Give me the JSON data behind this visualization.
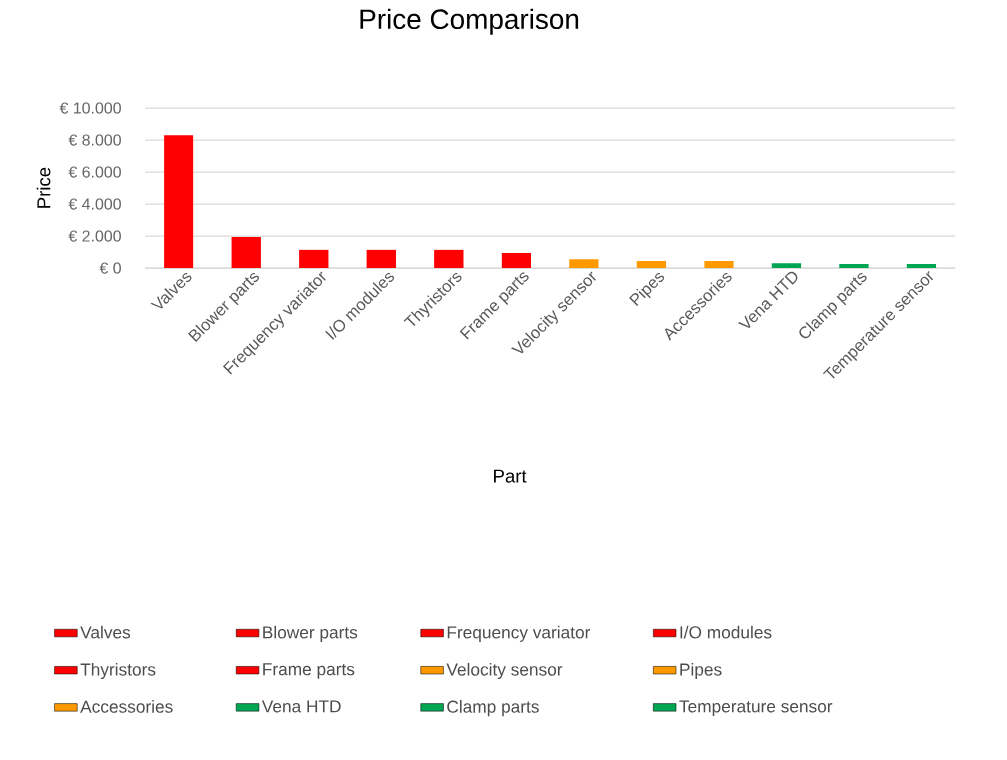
{
  "chart_data": {
    "type": "bar",
    "title": "Price Comparison",
    "xlabel": "Part",
    "ylabel": "Price",
    "categories": [
      "Valves",
      "Blower parts",
      "Frequency variator",
      "I/O modules",
      "Thyristors",
      "Frame parts",
      "Velocity sensor",
      "Pipes",
      "Accessories",
      "Vena HTD",
      "Clamp parts",
      "Temperature sensor"
    ],
    "series": [
      {
        "name": "Valves",
        "color": "#ff0000",
        "values": [
          8300,
          null,
          null,
          null,
          null,
          null,
          null,
          null,
          null,
          null,
          null,
          null
        ]
      },
      {
        "name": "Blower parts",
        "color": "#ff0000",
        "values": [
          null,
          1950,
          null,
          null,
          null,
          null,
          null,
          null,
          null,
          null,
          null,
          null
        ]
      },
      {
        "name": "Frequency variator",
        "color": "#ff0000",
        "values": [
          null,
          null,
          1150,
          null,
          null,
          null,
          null,
          null,
          null,
          null,
          null,
          null
        ]
      },
      {
        "name": "I/O modules",
        "color": "#ff0000",
        "values": [
          null,
          null,
          null,
          1150,
          null,
          null,
          null,
          null,
          null,
          null,
          null,
          null
        ]
      },
      {
        "name": "Thyristors",
        "color": "#ff0000",
        "values": [
          null,
          null,
          null,
          null,
          1150,
          null,
          null,
          null,
          null,
          null,
          null,
          null
        ]
      },
      {
        "name": "Frame parts",
        "color": "#ff0000",
        "values": [
          null,
          null,
          null,
          null,
          null,
          950,
          null,
          null,
          null,
          null,
          null,
          null
        ]
      },
      {
        "name": "Velocity sensor",
        "color": "#ff9900",
        "values": [
          null,
          null,
          null,
          null,
          null,
          null,
          550,
          null,
          null,
          null,
          null,
          null
        ]
      },
      {
        "name": "Pipes",
        "color": "#ff9900",
        "values": [
          null,
          null,
          null,
          null,
          null,
          null,
          null,
          450,
          null,
          null,
          null,
          null
        ]
      },
      {
        "name": "Accessories",
        "color": "#ff9900",
        "values": [
          null,
          null,
          null,
          null,
          null,
          null,
          null,
          null,
          450,
          null,
          null,
          null
        ]
      },
      {
        "name": "Vena HTD",
        "color": "#00a651",
        "values": [
          null,
          null,
          null,
          null,
          null,
          null,
          null,
          null,
          null,
          300,
          null,
          null
        ]
      },
      {
        "name": "Clamp parts",
        "color": "#00a651",
        "values": [
          null,
          null,
          null,
          null,
          null,
          null,
          null,
          null,
          null,
          null,
          250,
          null
        ]
      },
      {
        "name": "Temperature sensor",
        "color": "#00a651",
        "values": [
          null,
          null,
          null,
          null,
          null,
          null,
          null,
          null,
          null,
          null,
          null,
          250
        ]
      }
    ],
    "ylim": [
      0,
      10000
    ],
    "yticks": [
      {
        "value": 0,
        "label": "€ 0"
      },
      {
        "value": 2000,
        "label": "€ 2.000"
      },
      {
        "value": 4000,
        "label": "€ 4.000"
      },
      {
        "value": 6000,
        "label": "€ 6.000"
      },
      {
        "value": 8000,
        "label": "€ 8.000"
      },
      {
        "value": 10000,
        "label": "€ 10.000"
      }
    ],
    "grid": "y",
    "legend": "bottom"
  }
}
